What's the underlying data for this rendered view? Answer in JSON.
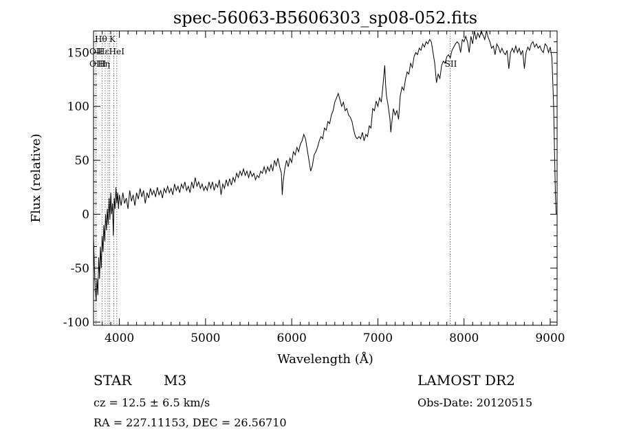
{
  "chart_data": {
    "type": "line",
    "title": "spec-56063-B5606303_sp08-052.fits",
    "xlabel": "Wavelength (Å)",
    "ylabel": "Flux (relative)",
    "xlim": [
      3700,
      9080
    ],
    "ylim": [
      -103,
      170
    ],
    "x_ticks": [
      4000,
      5000,
      6000,
      7000,
      8000,
      9000
    ],
    "y_ticks": [
      -100,
      -50,
      0,
      50,
      100,
      150
    ],
    "grid": false,
    "series": [
      {
        "points": [
          [
            3700,
            -20
          ],
          [
            3710,
            -50
          ],
          [
            3720,
            -70
          ],
          [
            3730,
            -80
          ],
          [
            3740,
            -60
          ],
          [
            3750,
            -75
          ],
          [
            3760,
            -40
          ],
          [
            3770,
            -60
          ],
          [
            3780,
            -30
          ],
          [
            3790,
            -50
          ],
          [
            3800,
            -20
          ],
          [
            3810,
            -35
          ],
          [
            3820,
            -10
          ],
          [
            3830,
            -25
          ],
          [
            3840,
            0
          ],
          [
            3850,
            -15
          ],
          [
            3860,
            5
          ],
          [
            3870,
            -10
          ],
          [
            3880,
            15
          ],
          [
            3890,
            -5
          ],
          [
            3900,
            20
          ],
          [
            3910,
            0
          ],
          [
            3920,
            10
          ],
          [
            3930,
            -20
          ],
          [
            3940,
            15
          ],
          [
            3950,
            5
          ],
          [
            3960,
            25
          ],
          [
            3970,
            10
          ],
          [
            3980,
            20
          ],
          [
            3990,
            5
          ],
          [
            4000,
            18
          ],
          [
            4020,
            8
          ],
          [
            4040,
            20
          ],
          [
            4060,
            10
          ],
          [
            4080,
            15
          ],
          [
            4100,
            5
          ],
          [
            4120,
            22
          ],
          [
            4140,
            12
          ],
          [
            4160,
            18
          ],
          [
            4180,
            8
          ],
          [
            4200,
            20
          ],
          [
            4220,
            14
          ],
          [
            4240,
            24
          ],
          [
            4260,
            16
          ],
          [
            4280,
            22
          ],
          [
            4300,
            10
          ],
          [
            4320,
            20
          ],
          [
            4340,
            15
          ],
          [
            4360,
            24
          ],
          [
            4380,
            18
          ],
          [
            4400,
            22
          ],
          [
            4420,
            16
          ],
          [
            4440,
            25
          ],
          [
            4460,
            18
          ],
          [
            4480,
            22
          ],
          [
            4500,
            15
          ],
          [
            4520,
            24
          ],
          [
            4540,
            20
          ],
          [
            4560,
            26
          ],
          [
            4580,
            20
          ],
          [
            4600,
            24
          ],
          [
            4620,
            18
          ],
          [
            4640,
            28
          ],
          [
            4660,
            22
          ],
          [
            4680,
            26
          ],
          [
            4700,
            20
          ],
          [
            4720,
            28
          ],
          [
            4740,
            24
          ],
          [
            4760,
            30
          ],
          [
            4780,
            22
          ],
          [
            4800,
            26
          ],
          [
            4820,
            20
          ],
          [
            4840,
            30
          ],
          [
            4860,
            24
          ],
          [
            4880,
            34
          ],
          [
            4900,
            26
          ],
          [
            4920,
            30
          ],
          [
            4940,
            24
          ],
          [
            4960,
            28
          ],
          [
            4980,
            22
          ],
          [
            5000,
            26
          ],
          [
            5020,
            22
          ],
          [
            5040,
            30
          ],
          [
            5060,
            24
          ],
          [
            5080,
            30
          ],
          [
            5100,
            22
          ],
          [
            5120,
            28
          ],
          [
            5140,
            25
          ],
          [
            5160,
            32
          ],
          [
            5180,
            18
          ],
          [
            5200,
            28
          ],
          [
            5220,
            24
          ],
          [
            5240,
            32
          ],
          [
            5260,
            26
          ],
          [
            5280,
            33
          ],
          [
            5300,
            27
          ],
          [
            5320,
            34
          ],
          [
            5340,
            30
          ],
          [
            5360,
            38
          ],
          [
            5380,
            34
          ],
          [
            5400,
            40
          ],
          [
            5420,
            36
          ],
          [
            5440,
            42
          ],
          [
            5460,
            36
          ],
          [
            5480,
            40
          ],
          [
            5500,
            34
          ],
          [
            5520,
            40
          ],
          [
            5540,
            35
          ],
          [
            5560,
            38
          ],
          [
            5580,
            32
          ],
          [
            5600,
            36
          ],
          [
            5620,
            34
          ],
          [
            5640,
            40
          ],
          [
            5660,
            38
          ],
          [
            5680,
            44
          ],
          [
            5700,
            38
          ],
          [
            5720,
            44
          ],
          [
            5740,
            40
          ],
          [
            5760,
            46
          ],
          [
            5780,
            40
          ],
          [
            5800,
            50
          ],
          [
            5820,
            45
          ],
          [
            5840,
            52
          ],
          [
            5860,
            44
          ],
          [
            5880,
            38
          ],
          [
            5890,
            18
          ],
          [
            5900,
            30
          ],
          [
            5920,
            42
          ],
          [
            5940,
            50
          ],
          [
            5960,
            44
          ],
          [
            5980,
            52
          ],
          [
            6000,
            48
          ],
          [
            6020,
            58
          ],
          [
            6040,
            55
          ],
          [
            6060,
            62
          ],
          [
            6080,
            58
          ],
          [
            6100,
            65
          ],
          [
            6120,
            68
          ],
          [
            6140,
            74
          ],
          [
            6160,
            70
          ],
          [
            6180,
            60
          ],
          [
            6200,
            50
          ],
          [
            6220,
            40
          ],
          [
            6240,
            45
          ],
          [
            6260,
            55
          ],
          [
            6280,
            58
          ],
          [
            6300,
            62
          ],
          [
            6320,
            68
          ],
          [
            6340,
            72
          ],
          [
            6360,
            70
          ],
          [
            6380,
            80
          ],
          [
            6400,
            78
          ],
          [
            6420,
            86
          ],
          [
            6440,
            84
          ],
          [
            6460,
            92
          ],
          [
            6480,
            96
          ],
          [
            6500,
            104
          ],
          [
            6520,
            108
          ],
          [
            6540,
            112
          ],
          [
            6560,
            106
          ],
          [
            6580,
            100
          ],
          [
            6600,
            104
          ],
          [
            6620,
            96
          ],
          [
            6640,
            98
          ],
          [
            6660,
            92
          ],
          [
            6680,
            90
          ],
          [
            6700,
            86
          ],
          [
            6720,
            78
          ],
          [
            6740,
            72
          ],
          [
            6760,
            70
          ],
          [
            6780,
            72
          ],
          [
            6800,
            70
          ],
          [
            6820,
            76
          ],
          [
            6840,
            68
          ],
          [
            6860,
            74
          ],
          [
            6880,
            72
          ],
          [
            6900,
            82
          ],
          [
            6920,
            80
          ],
          [
            6940,
            98
          ],
          [
            6960,
            96
          ],
          [
            6980,
            105
          ],
          [
            7000,
            100
          ],
          [
            7020,
            108
          ],
          [
            7040,
            104
          ],
          [
            7060,
            120
          ],
          [
            7080,
            138
          ],
          [
            7090,
            120
          ],
          [
            7100,
            110
          ],
          [
            7120,
            100
          ],
          [
            7140,
            88
          ],
          [
            7150,
            76
          ],
          [
            7160,
            84
          ],
          [
            7180,
            98
          ],
          [
            7200,
            92
          ],
          [
            7220,
            96
          ],
          [
            7240,
            88
          ],
          [
            7260,
            110
          ],
          [
            7280,
            118
          ],
          [
            7300,
            115
          ],
          [
            7320,
            125
          ],
          [
            7340,
            132
          ],
          [
            7360,
            130
          ],
          [
            7380,
            140
          ],
          [
            7400,
            136
          ],
          [
            7420,
            146
          ],
          [
            7440,
            150
          ],
          [
            7460,
            148
          ],
          [
            7480,
            154
          ],
          [
            7500,
            152
          ],
          [
            7520,
            158
          ],
          [
            7540,
            155
          ],
          [
            7560,
            160
          ],
          [
            7580,
            158
          ],
          [
            7600,
            162
          ],
          [
            7620,
            160
          ],
          [
            7640,
            150
          ],
          [
            7660,
            140
          ],
          [
            7680,
            122
          ],
          [
            7700,
            130
          ],
          [
            7720,
            126
          ],
          [
            7740,
            138
          ],
          [
            7760,
            142
          ],
          [
            7780,
            140
          ],
          [
            7800,
            146
          ],
          [
            7820,
            148
          ],
          [
            7840,
            145
          ],
          [
            7860,
            152
          ],
          [
            7880,
            155
          ],
          [
            7900,
            158
          ],
          [
            7920,
            160
          ],
          [
            7940,
            158
          ],
          [
            7960,
            150
          ],
          [
            7980,
            162
          ],
          [
            8000,
            160
          ],
          [
            8020,
            165
          ],
          [
            8040,
            160
          ],
          [
            8060,
            150
          ],
          [
            8080,
            165
          ],
          [
            8100,
            158
          ],
          [
            8120,
            170
          ],
          [
            8140,
            162
          ],
          [
            8160,
            168
          ],
          [
            8180,
            164
          ],
          [
            8200,
            170
          ],
          [
            8220,
            166
          ],
          [
            8240,
            162
          ],
          [
            8260,
            170
          ],
          [
            8280,
            164
          ],
          [
            8300,
            160
          ],
          [
            8320,
            154
          ],
          [
            8340,
            156
          ],
          [
            8360,
            148
          ],
          [
            8380,
            158
          ],
          [
            8400,
            155
          ],
          [
            8420,
            150
          ],
          [
            8440,
            154
          ],
          [
            8460,
            150
          ],
          [
            8480,
            148
          ],
          [
            8500,
            152
          ],
          [
            8520,
            135
          ],
          [
            8540,
            150
          ],
          [
            8560,
            154
          ],
          [
            8580,
            150
          ],
          [
            8600,
            156
          ],
          [
            8620,
            150
          ],
          [
            8640,
            154
          ],
          [
            8660,
            148
          ],
          [
            8680,
            152
          ],
          [
            8700,
            135
          ],
          [
            8720,
            150
          ],
          [
            8740,
            155
          ],
          [
            8760,
            152
          ],
          [
            8780,
            158
          ],
          [
            8800,
            160
          ],
          [
            8820,
            155
          ],
          [
            8840,
            158
          ],
          [
            8860,
            154
          ],
          [
            8880,
            156
          ],
          [
            8900,
            152
          ],
          [
            8920,
            150
          ],
          [
            8940,
            158
          ],
          [
            8960,
            156
          ],
          [
            8980,
            150
          ],
          [
            9000,
            155
          ],
          [
            9020,
            145
          ],
          [
            9040,
            100
          ],
          [
            9050,
            60
          ],
          [
            9060,
            20
          ],
          [
            9070,
            0
          ]
        ]
      }
    ],
    "line_markers": [
      {
        "label": "Hθ",
        "x": 3798
      },
      {
        "label": "K",
        "x": 3934
      },
      {
        "label": "OII",
        "x": 3727
      },
      {
        "label": "Hε",
        "x": 3970
      },
      {
        "label": "HeI",
        "x": 3889
      },
      {
        "label": "OIII",
        "x": 3868
      },
      {
        "label": "Hη",
        "x": 3835
      },
      {
        "label": "SII",
        "x": 7840
      }
    ],
    "marker_rows": [
      [
        "Hθ",
        "K"
      ],
      [
        "OII",
        "HεHeI"
      ],
      [
        "OIII",
        "Hη"
      ]
    ]
  },
  "info": {
    "object_type": "STAR",
    "subclass": "M3",
    "survey": "LAMOST DR2",
    "cz": "cz = 12.5 ± 6.5 km/s",
    "obs_date": "Obs-Date: 20120515",
    "radec": "RA = 227.11153, DEC =  26.56710"
  }
}
